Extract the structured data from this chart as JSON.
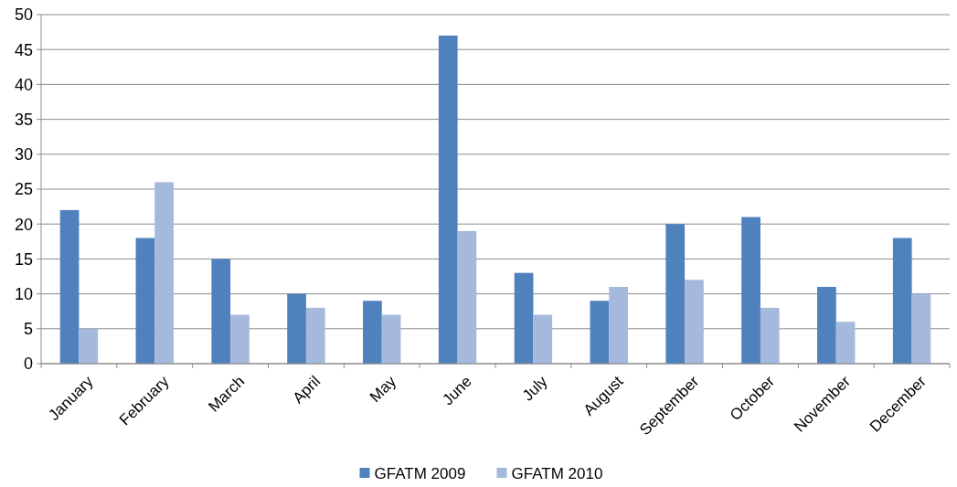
{
  "chart_data": {
    "type": "bar",
    "categories": [
      "January",
      "February",
      "March",
      "April",
      "May",
      "June",
      "July",
      "August",
      "September",
      "October",
      "November",
      "December"
    ],
    "series": [
      {
        "name": "GFATM 2009",
        "color": "#4f81bd",
        "values": [
          22,
          18,
          15,
          10,
          9,
          47,
          13,
          9,
          20,
          21,
          11,
          18
        ]
      },
      {
        "name": "GFATM 2010",
        "color": "#a5b9dc",
        "values": [
          5,
          26,
          7,
          8,
          7,
          19,
          7,
          11,
          12,
          8,
          6,
          10
        ]
      }
    ],
    "ylim": [
      0,
      50
    ],
    "yticks": [
      0,
      5,
      10,
      15,
      20,
      25,
      30,
      35,
      40,
      45,
      50
    ],
    "grid": "y",
    "legend": "bottom"
  }
}
